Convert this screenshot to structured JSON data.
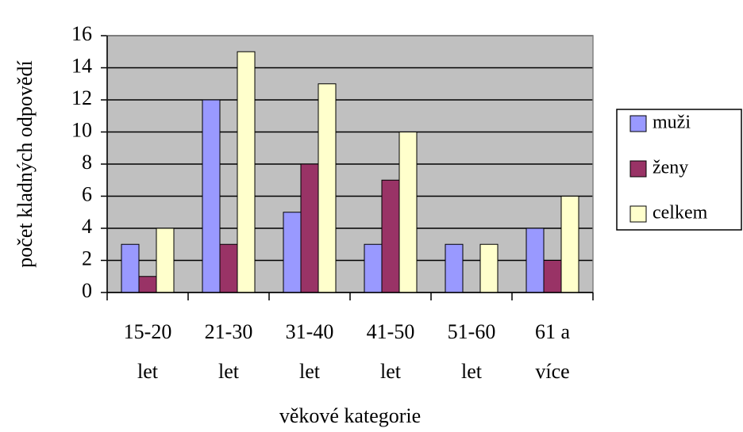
{
  "chart_data": {
    "type": "bar",
    "categories": [
      [
        "15-20",
        "let"
      ],
      [
        "21-30",
        "let"
      ],
      [
        "31-40",
        "let"
      ],
      [
        "41-50",
        "let"
      ],
      [
        "51-60",
        "let"
      ],
      [
        "61 a",
        "více"
      ]
    ],
    "series": [
      {
        "name": "muži",
        "color": "#9999ff",
        "values": [
          3,
          12,
          5,
          3,
          3,
          4
        ]
      },
      {
        "name": "ženy",
        "color": "#993366",
        "values": [
          1,
          3,
          8,
          7,
          0,
          2
        ]
      },
      {
        "name": "celkem",
        "color": "#ffffcc",
        "values": [
          4,
          15,
          13,
          10,
          3,
          6
        ]
      }
    ],
    "xlabel": "věkové kategorie",
    "ylabel": "počet kladných odpovědí",
    "ylim": [
      0,
      16
    ],
    "yticks": [
      0,
      2,
      4,
      6,
      8,
      10,
      12,
      14,
      16
    ],
    "grid": true,
    "legend": "right"
  }
}
